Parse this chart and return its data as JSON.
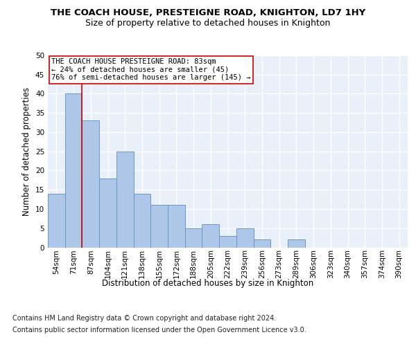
{
  "title": "THE COACH HOUSE, PRESTEIGNE ROAD, KNIGHTON, LD7 1HY",
  "subtitle": "Size of property relative to detached houses in Knighton",
  "xlabel": "Distribution of detached houses by size in Knighton",
  "ylabel": "Number of detached properties",
  "bin_labels": [
    "54sqm",
    "71sqm",
    "87sqm",
    "104sqm",
    "121sqm",
    "138sqm",
    "155sqm",
    "172sqm",
    "188sqm",
    "205sqm",
    "222sqm",
    "239sqm",
    "256sqm",
    "273sqm",
    "289sqm",
    "306sqm",
    "323sqm",
    "340sqm",
    "357sqm",
    "374sqm",
    "390sqm"
  ],
  "bar_values": [
    14,
    40,
    33,
    18,
    25,
    14,
    11,
    11,
    5,
    6,
    3,
    5,
    2,
    0,
    2,
    0,
    0,
    0,
    0,
    0,
    0
  ],
  "bar_color": "#aec6e8",
  "bar_edge_color": "#5a8fc2",
  "background_color": "#eaf0f9",
  "grid_color": "#ffffff",
  "vline_x": 1.5,
  "vline_color": "#cc0000",
  "annotation_line1": "THE COACH HOUSE PRESTEIGNE ROAD: 83sqm",
  "annotation_line2": "← 24% of detached houses are smaller (45)",
  "annotation_line3": "76% of semi-detached houses are larger (145) →",
  "annotation_box_edge": "#cc0000",
  "ylim": [
    0,
    50
  ],
  "yticks": [
    0,
    5,
    10,
    15,
    20,
    25,
    30,
    35,
    40,
    45,
    50
  ],
  "footer_line1": "Contains HM Land Registry data © Crown copyright and database right 2024.",
  "footer_line2": "Contains public sector information licensed under the Open Government Licence v3.0.",
  "title_fontsize": 9.5,
  "subtitle_fontsize": 9,
  "axis_label_fontsize": 8.5,
  "tick_fontsize": 7.5,
  "annotation_fontsize": 7.5,
  "footer_fontsize": 7
}
